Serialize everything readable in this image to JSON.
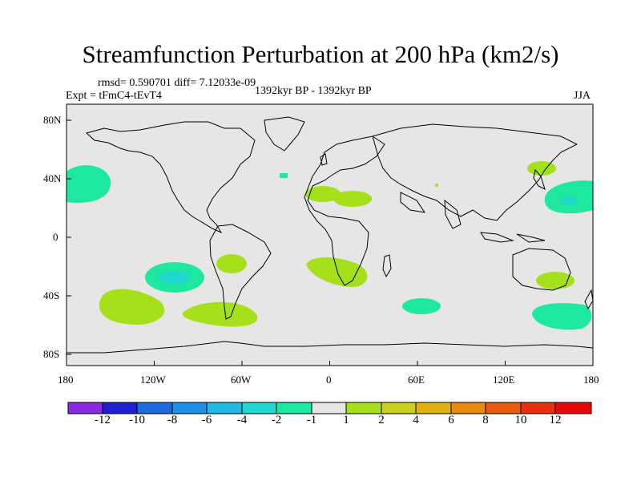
{
  "title": "Streamfunction Perturbation at 200 hPa (km2/s)",
  "stats": "rmsd= 0.590701 diff= 7.12033e-09",
  "experiment": "Expt = tFmC4-tEvT4",
  "period": "1392kyr BP - 1392kyr BP",
  "season": "JJA",
  "lat_labels": [
    "80N",
    "40N",
    "0",
    "40S",
    "80S"
  ],
  "lon_labels": [
    "180",
    "120W",
    "60W",
    "0",
    "60E",
    "120E",
    "180"
  ],
  "colorbar": {
    "labels": [
      "-12",
      "-10",
      "-8",
      "-6",
      "-4",
      "-2",
      "-1",
      "1",
      "2",
      "4",
      "6",
      "8",
      "10",
      "12"
    ],
    "colors": [
      "#8a2be2",
      "#2020d0",
      "#1e6be0",
      "#1e90e8",
      "#22b8e0",
      "#20d8d0",
      "#1ee8a0",
      "#e6e6e6",
      "#a6e01a",
      "#c8d01a",
      "#e0b010",
      "#e88a10",
      "#e85a10",
      "#e83010",
      "#e80808"
    ]
  },
  "colors": {
    "land_background": "#e6e6e6",
    "positive_2": "#a6e01a",
    "negative_2": "#1ee8a0",
    "negative_4": "#20d8d0"
  }
}
